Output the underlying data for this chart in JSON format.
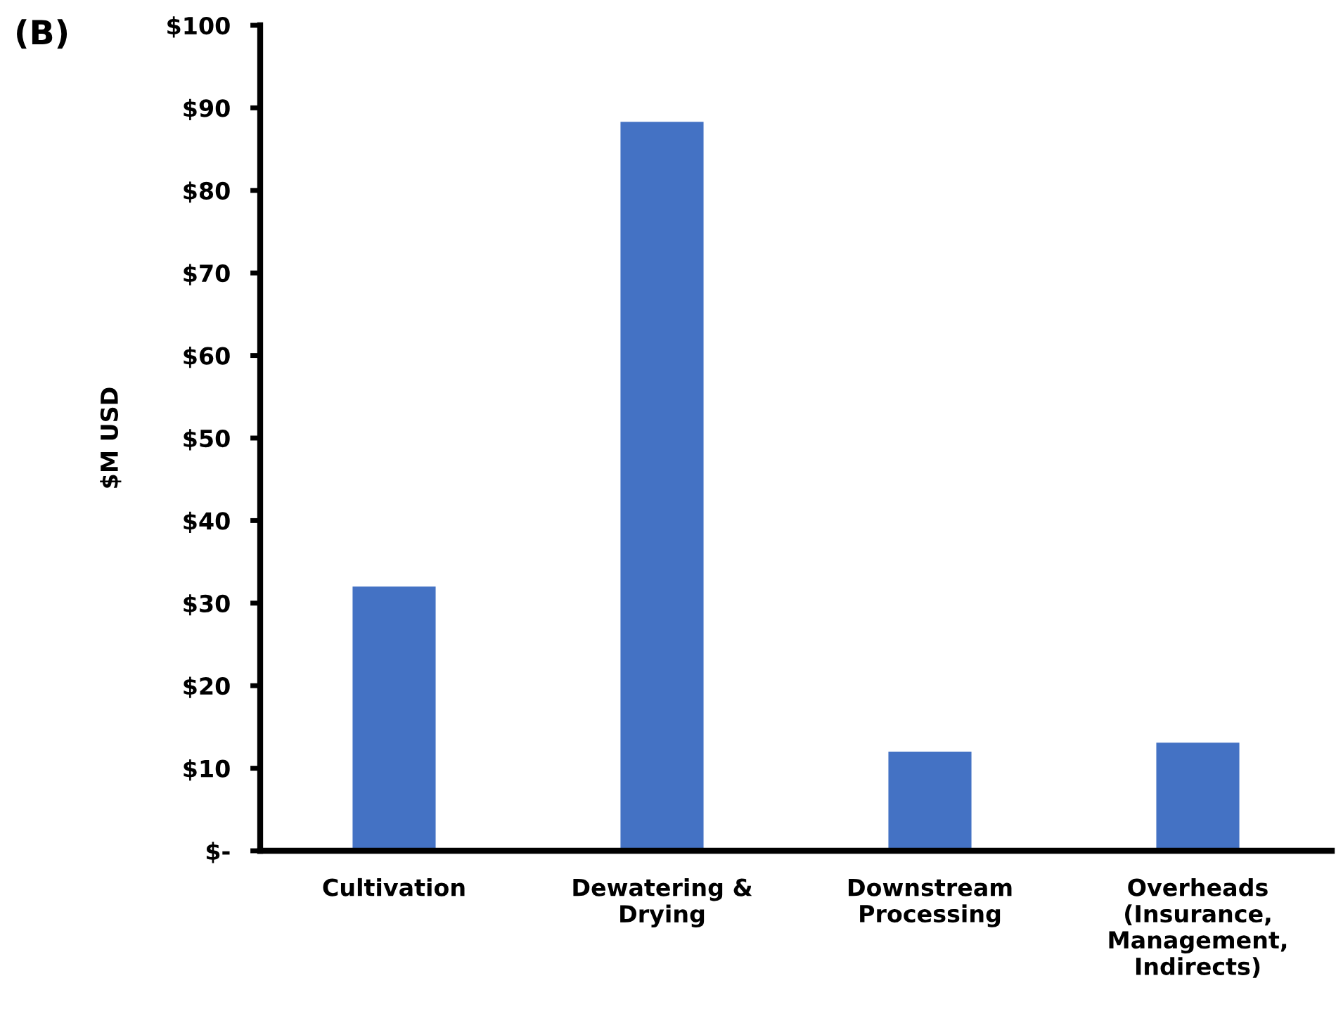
{
  "chart_data": {
    "type": "bar",
    "title": "(B)",
    "ylabel": "$M USD",
    "categories": [
      "Cultivation",
      "Dewatering &\nDrying",
      "Downstream\nProcessing",
      "Overheads\n(Insurance,\nManagement,\nIndirects)"
    ],
    "values": [
      32,
      88.3,
      12,
      13.1
    ],
    "color": "#4472c4",
    "ylim": [
      0,
      100
    ],
    "yticks": [
      {
        "value": 0,
        "label": "$-"
      },
      {
        "value": 10,
        "label": "$10"
      },
      {
        "value": 20,
        "label": "$20"
      },
      {
        "value": 30,
        "label": "$30"
      },
      {
        "value": 40,
        "label": "$40"
      },
      {
        "value": 50,
        "label": "$50"
      },
      {
        "value": 60,
        "label": "$60"
      },
      {
        "value": 70,
        "label": "$70"
      },
      {
        "value": 80,
        "label": "$80"
      },
      {
        "value": 90,
        "label": "$90"
      },
      {
        "value": 100,
        "label": "$100"
      }
    ],
    "grid": false,
    "legend": false
  }
}
